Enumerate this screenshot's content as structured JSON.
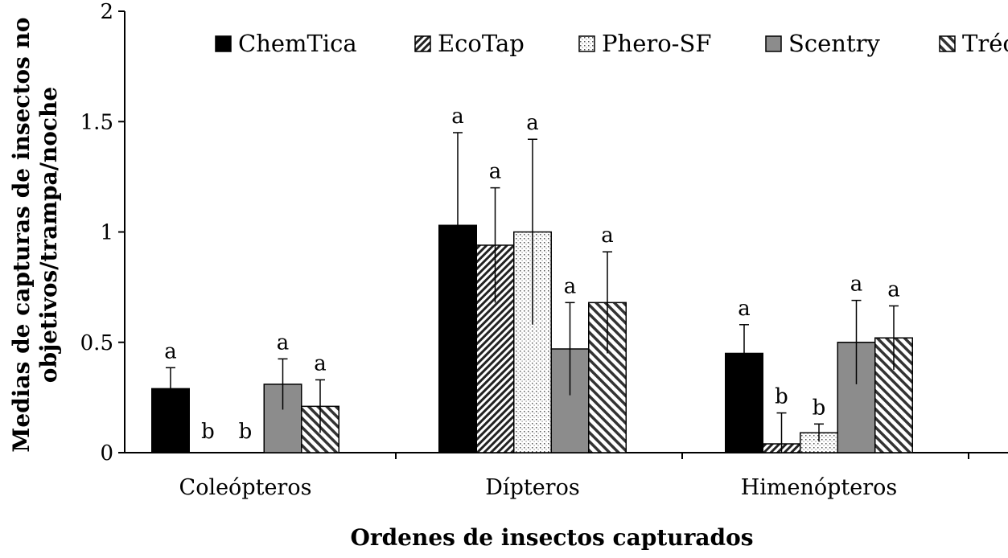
{
  "chart_data": {
    "type": "bar",
    "xlabel": "Ordenes de insectos capturados",
    "ylabel_line1": "Medias de capturas de insectos no",
    "ylabel_line2": "objetivos/trampa/noche",
    "ylim": [
      0,
      2
    ],
    "yticks": [
      "0",
      "0.5",
      "1",
      "1.5",
      "2"
    ],
    "categories": [
      "Coleópteros",
      "Dípteros",
      "Himenópteros"
    ],
    "series": [
      {
        "name": "ChemTica",
        "values": [
          0.29,
          1.03,
          0.45
        ],
        "errors": [
          0.095,
          0.42,
          0.13
        ],
        "letters": [
          "a",
          "a",
          "a"
        ],
        "fill": "solid-black"
      },
      {
        "name": "EcoTap",
        "values": [
          0.0,
          0.94,
          0.04
        ],
        "errors": [
          0.0,
          0.26,
          0.14
        ],
        "letters": [
          "b",
          "a",
          "b"
        ],
        "fill": "dense-diagonal"
      },
      {
        "name": "Phero-SF",
        "values": [
          0.0,
          1.0,
          0.09
        ],
        "errors": [
          0.0,
          0.42,
          0.04
        ],
        "letters": [
          "b",
          "a",
          "b"
        ],
        "fill": "dotted"
      },
      {
        "name": "Scentry",
        "values": [
          0.31,
          0.47,
          0.5
        ],
        "errors": [
          0.115,
          0.21,
          0.19
        ],
        "letters": [
          "a",
          "a",
          "a"
        ],
        "fill": "gray"
      },
      {
        "name": "Trécé",
        "values": [
          0.21,
          0.68,
          0.52
        ],
        "errors": [
          0.12,
          0.23,
          0.145
        ],
        "letters": [
          "a",
          "a",
          "a"
        ],
        "fill": "wide-diagonal"
      }
    ],
    "legend_position": "top"
  }
}
